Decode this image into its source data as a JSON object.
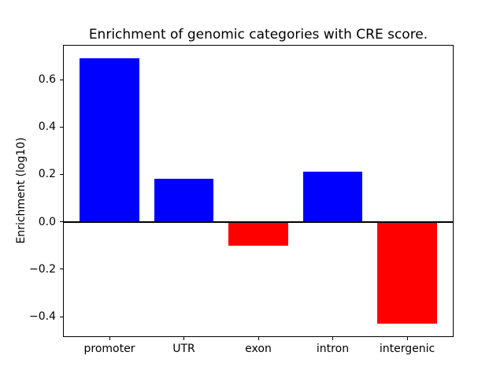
{
  "chart_data": {
    "type": "bar",
    "title": "Enrichment of genomic categories with CRE score.",
    "xlabel": "",
    "ylabel": "Enrichment (log10)",
    "categories": [
      "promoter",
      "UTR",
      "exon",
      "intron",
      "intergenic"
    ],
    "values": [
      0.69,
      0.18,
      -0.1,
      0.21,
      -0.43
    ],
    "ylim": [
      -0.486,
      0.746
    ],
    "yticks": [
      0.6,
      0.4,
      0.2,
      0.0,
      -0.2,
      -0.4
    ],
    "ytick_labels": [
      "0.6",
      "0.4",
      "0.2",
      "0.0",
      "−0.2",
      "−0.4"
    ],
    "grid": false,
    "legend": null,
    "zero_line": true,
    "bar_width_frac": 0.8,
    "positive_color": "#0000ff",
    "negative_color": "#ff0000",
    "axis_color": "#000000",
    "background_color": "#ffffff"
  }
}
